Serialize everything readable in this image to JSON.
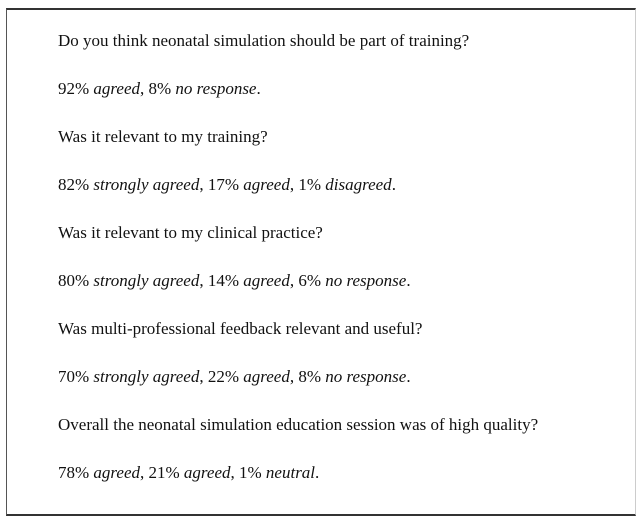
{
  "items": [
    {
      "question": "Do you think neonatal simulation should be part of training?",
      "answer": [
        "92% ",
        "agreed",
        ", 8% ",
        "no response",
        "."
      ]
    },
    {
      "question": "Was it relevant to my training?",
      "answer": [
        "82% ",
        "strongly agreed",
        ", 17% ",
        "agreed",
        ", 1% ",
        "disagreed",
        "."
      ]
    },
    {
      "question": "Was it relevant to my clinical practice?",
      "answer": [
        "80% ",
        "strongly agreed",
        ", 14% ",
        "agreed",
        ", 6% ",
        "no response",
        "."
      ]
    },
    {
      "question": "Was multi-professional feedback relevant and useful?",
      "answer": [
        "70% ",
        "strongly agreed",
        ", 22% ",
        "agreed",
        ", 8% ",
        "no response",
        "."
      ]
    },
    {
      "question": "Overall the neonatal simulation education session was of high quality?",
      "answer": [
        "78% ",
        "agreed",
        ", 21% ",
        "agreed",
        ", 1% ",
        "neutral",
        "."
      ]
    }
  ]
}
